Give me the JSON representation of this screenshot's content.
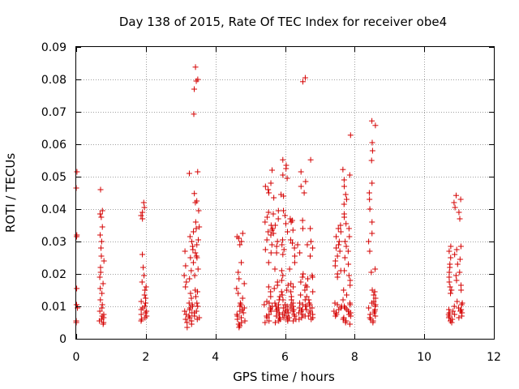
{
  "chart_data": {
    "type": "scatter",
    "title": "Day 138 of 2015, Rate Of TEC Index for receiver obe4",
    "xlabel": "GPS time / hours",
    "ylabel": "ROTI / TECUs",
    "xlim": [
      0,
      12
    ],
    "ylim": [
      0,
      0.09
    ],
    "x_ticks": [
      0,
      2,
      4,
      6,
      8,
      10,
      12
    ],
    "y_ticks": [
      0,
      0.01,
      0.02,
      0.03,
      0.04,
      0.05,
      0.06,
      0.07,
      0.08,
      0.09
    ],
    "x_tick_labels": [
      "0",
      "2",
      "4",
      "6",
      "8",
      "10",
      "12"
    ],
    "y_tick_labels": [
      "0",
      "0.01",
      "0.02",
      "0.03",
      "0.04",
      "0.05",
      "0.06",
      "0.07",
      "0.08",
      "0.09"
    ],
    "grid": true,
    "marker": "+",
    "marker_color": "#d40000",
    "series": [
      {
        "name": "obe4",
        "clusters": [
          {
            "x_min": 0.0,
            "x_max": 0.05,
            "values": [
              0.0515,
              0.0465,
              0.032,
              0.0315,
              0.0155,
              0.0105,
              0.0095,
              0.0055,
              0.005
            ]
          },
          {
            "x_min": 0.65,
            "x_max": 0.8,
            "values": [
              0.046,
              0.0395,
              0.0385,
              0.0375,
              0.0345,
              0.032,
              0.03,
              0.028,
              0.0255,
              0.024,
              0.022,
              0.0205,
              0.019,
              0.017,
              0.0155,
              0.014,
              0.012,
              0.0105,
              0.0095,
              0.0085,
              0.0075,
              0.007,
              0.0065,
              0.006,
              0.0055,
              0.005,
              0.0045
            ]
          },
          {
            "x_min": 1.85,
            "x_max": 2.05,
            "values": [
              0.042,
              0.0405,
              0.039,
              0.038,
              0.037,
              0.026,
              0.022,
              0.0195,
              0.0175,
              0.016,
              0.015,
              0.0135,
              0.0125,
              0.0115,
              0.011,
              0.01,
              0.0095,
              0.009,
              0.0085,
              0.008,
              0.0075,
              0.007,
              0.0065,
              0.006,
              0.0055
            ]
          },
          {
            "x_min": 3.1,
            "x_max": 3.35,
            "values": [
              0.051,
              0.0315,
              0.03,
              0.0285,
              0.027,
              0.025,
              0.0225,
              0.021,
              0.0195,
              0.0185,
              0.0175,
              0.016,
              0.014,
              0.0125,
              0.011,
              0.0105,
              0.01,
              0.0095,
              0.009,
              0.0085,
              0.008,
              0.0075,
              0.007,
              0.0065,
              0.006,
              0.0055,
              0.005,
              0.0045,
              0.0035
            ]
          },
          {
            "x_min": 3.35,
            "x_max": 3.55,
            "values": [
              0.0838,
              0.08,
              0.0795,
              0.077,
              0.0693,
              0.0515,
              0.0448,
              0.0425,
              0.042,
              0.0395,
              0.036,
              0.0345,
              0.034,
              0.033,
              0.0305,
              0.029,
              0.0275,
              0.0265,
              0.0255,
              0.025,
              0.0235,
              0.0215,
              0.0195,
              0.015,
              0.0145,
              0.013,
              0.011,
              0.01,
              0.0085,
              0.008,
              0.007,
              0.0065,
              0.006
            ]
          },
          {
            "x_min": 4.6,
            "x_max": 4.85,
            "values": [
              0.0325,
              0.0315,
              0.031,
              0.03,
              0.029,
              0.0235,
              0.0205,
              0.0185,
              0.017,
              0.0155,
              0.014,
              0.0125,
              0.011,
              0.0105,
              0.01,
              0.0095,
              0.009,
              0.0085,
              0.008,
              0.0075,
              0.007,
              0.0065,
              0.006,
              0.0055,
              0.005,
              0.0045,
              0.004,
              0.0035
            ]
          },
          {
            "x_min": 5.4,
            "x_max": 5.65,
            "values": [
              0.052,
              0.048,
              0.047,
              0.046,
              0.045,
              0.039,
              0.0375,
              0.036,
              0.035,
              0.034,
              0.0335,
              0.033,
              0.032,
              0.0305,
              0.029,
              0.0275,
              0.0265,
              0.0235,
              0.016,
              0.0145,
              0.013,
              0.0115,
              0.011,
              0.0105,
              0.01,
              0.0095,
              0.009,
              0.0085,
              0.0075,
              0.007,
              0.0065,
              0.0055,
              0.005
            ]
          },
          {
            "x_min": 5.65,
            "x_max": 5.9,
            "values": [
              0.0445,
              0.0435,
              0.0395,
              0.0385,
              0.037,
              0.035,
              0.0325,
              0.03,
              0.0285,
              0.0265,
              0.0215,
              0.0175,
              0.0165,
              0.0155,
              0.0145,
              0.013,
              0.012,
              0.011,
              0.0105,
              0.01,
              0.0095,
              0.009,
              0.0085,
              0.008,
              0.0075,
              0.007,
              0.0065,
              0.006,
              0.0055,
              0.005
            ]
          },
          {
            "x_min": 5.9,
            "x_max": 6.1,
            "values": [
              0.0552,
              0.0535,
              0.0525,
              0.0505,
              0.0495,
              0.044,
              0.0395,
              0.038,
              0.0355,
              0.033,
              0.0305,
              0.029,
              0.0275,
              0.026,
              0.021,
              0.0195,
              0.018,
              0.0165,
              0.015,
              0.0135,
              0.012,
              0.0105,
              0.01,
              0.0095,
              0.009,
              0.0085,
              0.008,
              0.0075,
              0.007,
              0.0065,
              0.006,
              0.0055
            ]
          },
          {
            "x_min": 6.1,
            "x_max": 6.35,
            "values": [
              0.037,
              0.0365,
              0.036,
              0.0335,
              0.0305,
              0.0295,
              0.028,
              0.0255,
              0.0235,
              0.0215,
              0.017,
              0.016,
              0.0145,
              0.013,
              0.012,
              0.011,
              0.0105,
              0.01,
              0.0095,
              0.009,
              0.0085,
              0.008,
              0.0075,
              0.007,
              0.0065,
              0.006,
              0.0055
            ]
          },
          {
            "x_min": 6.35,
            "x_max": 6.6,
            "values": [
              0.0805,
              0.0793,
              0.0515,
              0.0485,
              0.047,
              0.045,
              0.0365,
              0.034,
              0.029,
              0.0265,
              0.02,
              0.019,
              0.0175,
              0.0165,
              0.015,
              0.0135,
              0.012,
              0.011,
              0.0105,
              0.01,
              0.0095,
              0.009,
              0.0085,
              0.008,
              0.0075,
              0.007,
              0.0065,
              0.006
            ]
          },
          {
            "x_min": 6.6,
            "x_max": 6.8,
            "values": [
              0.0552,
              0.034,
              0.03,
              0.029,
              0.028,
              0.0255,
              0.0195,
              0.019,
              0.0185,
              0.016,
              0.0145,
              0.013,
              0.012,
              0.011,
              0.0105,
              0.01,
              0.0095,
              0.009,
              0.0085,
              0.008,
              0.0075,
              0.007,
              0.0065,
              0.006
            ]
          },
          {
            "x_min": 7.4,
            "x_max": 7.65,
            "values": [
              0.035,
              0.034,
              0.033,
              0.0315,
              0.03,
              0.029,
              0.028,
              0.027,
              0.0255,
              0.024,
              0.0225,
              0.021,
              0.02,
              0.019,
              0.011,
              0.0105,
              0.01,
              0.0095,
              0.009,
              0.0085,
              0.008,
              0.0075,
              0.007
            ]
          },
          {
            "x_min": 7.65,
            "x_max": 7.9,
            "values": [
              0.0628,
              0.0522,
              0.0505,
              0.049,
              0.047,
              0.0445,
              0.043,
              0.0415,
              0.0385,
              0.0375,
              0.0355,
              0.034,
              0.0315,
              0.03,
              0.0285,
              0.027,
              0.025,
              0.023,
              0.021,
              0.0195,
              0.018,
              0.0165,
              0.015,
              0.0135,
              0.012,
              0.011,
              0.0105,
              0.01,
              0.0095,
              0.009,
              0.0085,
              0.008,
              0.0075,
              0.007,
              0.0065,
              0.006,
              0.0055,
              0.005,
              0.0045
            ]
          },
          {
            "x_min": 8.4,
            "x_max": 8.6,
            "values": [
              0.0672,
              0.0658,
              0.0605,
              0.058,
              0.055,
              0.048,
              0.045,
              0.043,
              0.04,
              0.036,
              0.0325,
              0.03,
              0.027,
              0.0215,
              0.0205,
              0.015,
              0.0145,
              0.0135,
              0.0125,
              0.0115,
              0.011,
              0.0105,
              0.01,
              0.0095,
              0.009,
              0.0085,
              0.008,
              0.0075,
              0.007,
              0.0065,
              0.006,
              0.0055,
              0.005
            ]
          },
          {
            "x_min": 10.65,
            "x_max": 10.85,
            "values": [
              0.0285,
              0.027,
              0.025,
              0.023,
              0.022,
              0.0205,
              0.019,
              0.0175,
              0.016,
              0.015,
              0.014,
              0.009,
              0.0085,
              0.008,
              0.0075,
              0.007,
              0.0065,
              0.006,
              0.0055,
              0.005
            ]
          },
          {
            "x_min": 10.85,
            "x_max": 11.1,
            "values": [
              0.0442,
              0.043,
              0.042,
              0.0405,
              0.039,
              0.037,
              0.0285,
              0.0275,
              0.026,
              0.0245,
              0.023,
              0.0205,
              0.0195,
              0.018,
              0.0165,
              0.015,
              0.0115,
              0.011,
              0.0105,
              0.01,
              0.0095,
              0.009,
              0.0085,
              0.008,
              0.0075,
              0.007,
              0.0065
            ]
          }
        ]
      }
    ]
  }
}
